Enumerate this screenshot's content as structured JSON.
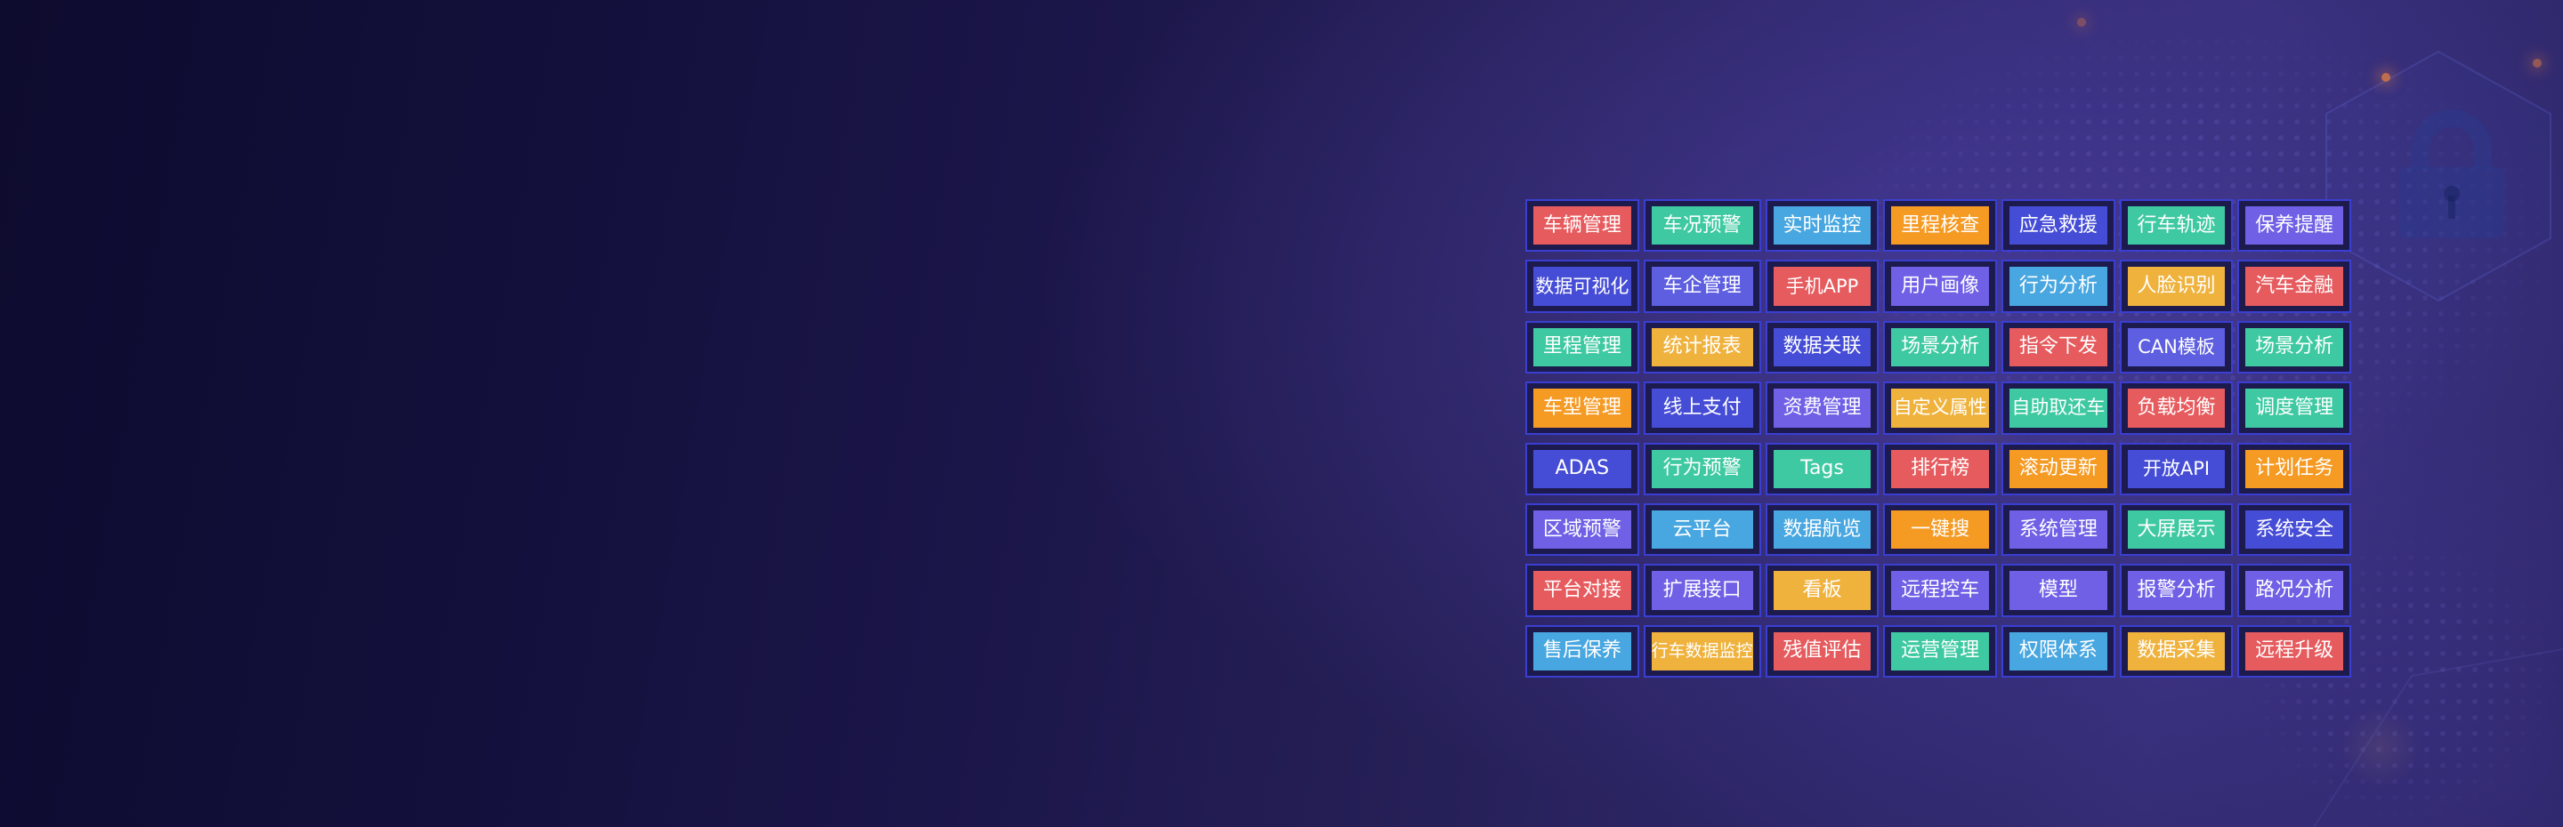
{
  "page": {
    "background_base": "#12103a",
    "grid_border_color": "#3a3fd2",
    "cell_background": "#1d1a4e",
    "text_color": "#ffffff"
  },
  "palette": {
    "red": "#e65b5e",
    "teal": "#3ec9a2",
    "sky": "#48a7e0",
    "orange": "#f59a23",
    "blue": "#454cd6",
    "indigo": "#5d5ee0",
    "violet": "#6f60e6",
    "yellow": "#efb23d"
  },
  "icons": {
    "lock": "lock-icon"
  },
  "grid": {
    "rows": [
      {
        "cells": [
          {
            "label": "车辆管理",
            "color": "red"
          },
          {
            "label": "车况预警",
            "color": "teal"
          },
          {
            "label": "实时监控",
            "color": "sky"
          },
          {
            "label": "里程核查",
            "color": "orange"
          },
          {
            "label": "应急救援",
            "color": "blue"
          },
          {
            "label": "行车轨迹",
            "color": "teal"
          },
          {
            "label": "保养提醒",
            "color": "violet"
          }
        ]
      },
      {
        "cells": [
          {
            "label": "数据可视化",
            "color": "blue"
          },
          {
            "label": "车企管理",
            "color": "indigo"
          },
          {
            "label": "手机APP",
            "color": "red"
          },
          {
            "label": "用户画像",
            "color": "violet"
          },
          {
            "label": "行为分析",
            "color": "sky"
          },
          {
            "label": "人脸识别",
            "color": "yellow"
          },
          {
            "label": "汽车金融",
            "color": "red"
          }
        ]
      },
      {
        "cells": [
          {
            "label": "里程管理",
            "color": "teal"
          },
          {
            "label": "统计报表",
            "color": "yellow"
          },
          {
            "label": "数据关联",
            "color": "blue"
          },
          {
            "label": "场景分析",
            "color": "teal"
          },
          {
            "label": "指令下发",
            "color": "red"
          },
          {
            "label": "CAN模板",
            "color": "indigo"
          },
          {
            "label": "场景分析",
            "color": "teal"
          }
        ]
      },
      {
        "cells": [
          {
            "label": "车型管理",
            "color": "orange"
          },
          {
            "label": "线上支付",
            "color": "blue"
          },
          {
            "label": "资费管理",
            "color": "violet"
          },
          {
            "label": "自定义属性",
            "color": "yellow"
          },
          {
            "label": "自助取还车",
            "color": "teal"
          },
          {
            "label": "负载均衡",
            "color": "red"
          },
          {
            "label": "调度管理",
            "color": "teal"
          }
        ]
      },
      {
        "cells": [
          {
            "label": "ADAS",
            "color": "blue"
          },
          {
            "label": "行为预警",
            "color": "teal"
          },
          {
            "label": "Tags",
            "color": "teal"
          },
          {
            "label": "排行榜",
            "color": "red"
          },
          {
            "label": "滚动更新",
            "color": "orange"
          },
          {
            "label": "开放API",
            "color": "blue"
          },
          {
            "label": "计划任务",
            "color": "orange"
          }
        ]
      },
      {
        "cells": [
          {
            "label": "区域预警",
            "color": "violet"
          },
          {
            "label": "云平台",
            "color": "sky"
          },
          {
            "label": "数据航览",
            "color": "sky"
          },
          {
            "label": "一键搜",
            "color": "orange"
          },
          {
            "label": "系统管理",
            "color": "violet"
          },
          {
            "label": "大屏展示",
            "color": "teal"
          },
          {
            "label": "系统安全",
            "color": "blue"
          }
        ]
      },
      {
        "cells": [
          {
            "label": "平台对接",
            "color": "red"
          },
          {
            "label": "扩展接口",
            "color": "violet"
          },
          {
            "label": "看板",
            "color": "yellow"
          },
          {
            "label": "远程控车",
            "color": "violet"
          },
          {
            "label": "模型",
            "color": "violet"
          },
          {
            "label": "报警分析",
            "color": "violet"
          },
          {
            "label": "路况分析",
            "color": "violet"
          }
        ]
      },
      {
        "cells": [
          {
            "label": "售后保养",
            "color": "sky"
          },
          {
            "label": "行车数据监控",
            "color": "yellow"
          },
          {
            "label": "残值评估",
            "color": "red"
          },
          {
            "label": "运营管理",
            "color": "teal"
          },
          {
            "label": "权限体系",
            "color": "sky"
          },
          {
            "label": "数据采集",
            "color": "yellow"
          },
          {
            "label": "远程升级",
            "color": "red"
          }
        ]
      }
    ]
  }
}
